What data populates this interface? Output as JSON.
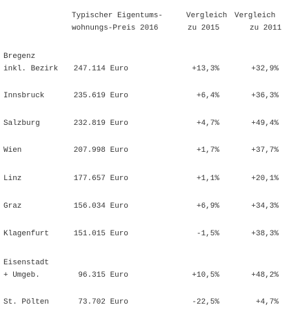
{
  "table": {
    "header": {
      "price": [
        "Typischer Eigentums-",
        "wohnungs-Preis 2016"
      ],
      "vs2015": [
        "Vergleich",
        "zu 2015"
      ],
      "vs2011": [
        "Vergleich",
        "zu 2011"
      ]
    },
    "rows": [
      {
        "label": [
          "Bregenz",
          "inkl. Bezirk"
        ],
        "price": "247.114 Euro",
        "vs2015": "+13,3%",
        "vs2011": "+32,9%"
      },
      {
        "label": [
          "Innsbruck"
        ],
        "price": "235.619 Euro",
        "vs2015": "+6,4%",
        "vs2011": "+36,3%"
      },
      {
        "label": [
          "Salzburg"
        ],
        "price": "232.819 Euro",
        "vs2015": "+4,7%",
        "vs2011": "+49,4%"
      },
      {
        "label": [
          "Wien"
        ],
        "price": "207.998 Euro",
        "vs2015": "+1,7%",
        "vs2011": "+37,7%"
      },
      {
        "label": [
          "Linz"
        ],
        "price": "177.657 Euro",
        "vs2015": "+1,1%",
        "vs2011": "+20,1%"
      },
      {
        "label": [
          "Graz"
        ],
        "price": "156.034 Euro",
        "vs2015": "+6,9%",
        "vs2011": "+34,3%"
      },
      {
        "label": [
          "Klagenfurt"
        ],
        "price": "151.015 Euro",
        "vs2015": "-1,5%",
        "vs2011": "+38,3%"
      },
      {
        "label": [
          "Eisenstadt",
          "+ Umgeb."
        ],
        "price": "96.315 Euro",
        "vs2015": "+10,5%",
        "vs2011": "+48,2%"
      },
      {
        "label": [
          "St. Pölten"
        ],
        "price": "73.702 Euro",
        "vs2015": "-22,5%",
        "vs2011": "+4,7%"
      }
    ]
  }
}
